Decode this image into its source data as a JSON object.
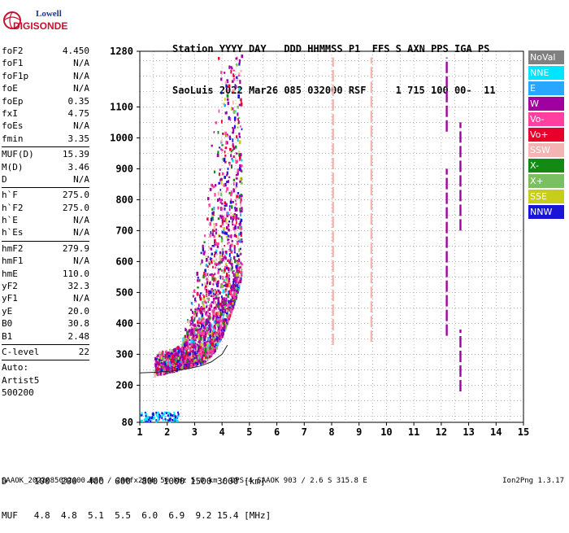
{
  "logo": {
    "line1": "Lowell",
    "line2": "DIGISONDE"
  },
  "header": {
    "labels": [
      "Station",
      "YYYY",
      "DAY",
      "DDD",
      "HHMMSS",
      "P1",
      "FFS",
      "S",
      "AXN",
      "PPS",
      "IGA",
      "PS"
    ],
    "values": [
      "SaoLuis",
      "2022",
      "Mar26",
      "085",
      "032000",
      "RSF",
      "1",
      "715",
      "100",
      "00-",
      "11"
    ]
  },
  "parameters": [
    {
      "label": "foF2",
      "value": "4.450"
    },
    {
      "label": "foF1",
      "value": "N/A"
    },
    {
      "label": "foF1p",
      "value": "N/A"
    },
    {
      "label": "foE",
      "value": "N/A"
    },
    {
      "label": "foEp",
      "value": "0.35"
    },
    {
      "label": "fxI",
      "value": "4.75"
    },
    {
      "label": "foEs",
      "value": "N/A"
    },
    {
      "label": "fmin",
      "value": "3.35"
    },
    {
      "sep": true
    },
    {
      "label": "MUF(D)",
      "value": "15.39"
    },
    {
      "label": "M(D)",
      "value": "3.46"
    },
    {
      "label": "D",
      "value": "N/A"
    },
    {
      "sep": true
    },
    {
      "label": "h`F",
      "value": "275.0"
    },
    {
      "label": "h`F2",
      "value": "275.0"
    },
    {
      "label": "h`E",
      "value": "N/A"
    },
    {
      "label": "h`Es",
      "value": "N/A"
    },
    {
      "sep": true
    },
    {
      "label": "hmF2",
      "value": "279.9"
    },
    {
      "label": "hmF1",
      "value": "N/A"
    },
    {
      "label": "hmE",
      "value": "110.0"
    },
    {
      "label": "yF2",
      "value": "32.3"
    },
    {
      "label": "yF1",
      "value": "N/A"
    },
    {
      "label": "yE",
      "value": "20.0"
    },
    {
      "label": "B0",
      "value": "30.8"
    },
    {
      "label": "B1",
      "value": "2.48"
    },
    {
      "sep": true
    },
    {
      "label": "C-level",
      "value": "22"
    },
    {
      "sep": true
    },
    {
      "text": "Auto:"
    },
    {
      "text": "Artist5"
    },
    {
      "text": "500200"
    }
  ],
  "legend": [
    {
      "label": "NoVal",
      "color": "#808080"
    },
    {
      "label": "NNE",
      "color": "#00e5ff"
    },
    {
      "label": "E",
      "color": "#29a6ff"
    },
    {
      "label": "W",
      "color": "#a000a0"
    },
    {
      "label": "Vo-",
      "color": "#ff40a0"
    },
    {
      "label": "Vo+",
      "color": "#e8002a"
    },
    {
      "label": "SSW",
      "color": "#f4b4b4"
    },
    {
      "label": "X-",
      "color": "#138a13"
    },
    {
      "label": "X+",
      "color": "#7ac060"
    },
    {
      "label": "SSE",
      "color": "#c8cc1a"
    },
    {
      "label": "NNW",
      "color": "#1a14d8"
    }
  ],
  "muf_table": {
    "d_label": "D",
    "d_values": [
      "100",
      "200",
      "400",
      "600",
      "800",
      "1000",
      "1500",
      "3000"
    ],
    "d_unit": "[km]",
    "muf_label": "MUF",
    "muf_values": [
      "4.8",
      "4.8",
      "5.1",
      "5.5",
      "6.0",
      "6.9",
      "9.2",
      "15.4"
    ],
    "muf_unit": "[MHz]"
  },
  "footer": {
    "left": "SAAOK_2022085032000.RSF / 280fx256h 50 kHz 5.0 km / DPS-4 SAAOK 903 / 2.6 S 315.8 E",
    "right": "Ion2Png 1.3.17"
  },
  "chart_data": {
    "type": "scatter",
    "xlim": [
      1,
      15
    ],
    "ylim": [
      80,
      1280
    ],
    "x_ticks": [
      1,
      2,
      3,
      4,
      5,
      6,
      7,
      8,
      9,
      10,
      11,
      12,
      13,
      14,
      15
    ],
    "y_ticks": [
      80,
      200,
      300,
      400,
      500,
      600,
      700,
      800,
      900,
      1000,
      1100,
      1280
    ],
    "grid": true,
    "traces": [
      {
        "name": "W",
        "x": 12.2,
        "y_from": 1020,
        "y_to": 1260,
        "color": "#a000a0"
      },
      {
        "name": "W",
        "x": 12.2,
        "y_from": 360,
        "y_to": 900,
        "color": "#a000a0"
      },
      {
        "name": "W",
        "x": 12.7,
        "y_from": 700,
        "y_to": 1050,
        "color": "#a000a0"
      },
      {
        "name": "W",
        "x": 12.7,
        "y_from": 180,
        "y_to": 380,
        "color": "#a000a0"
      },
      {
        "name": "SSW",
        "x": 8.05,
        "y_from": 330,
        "y_to": 1260,
        "color": "#f4b4b4"
      },
      {
        "name": "SSW",
        "x": 9.45,
        "y_from": 340,
        "y_to": 1260,
        "color": "#f4b4b4"
      }
    ],
    "profile_curve": {
      "x": [
        1.0,
        1.6,
        2.2,
        2.8,
        3.2,
        3.6,
        4.0,
        4.2
      ],
      "y": [
        240,
        242,
        246,
        254,
        262,
        275,
        300,
        330
      ]
    }
  }
}
